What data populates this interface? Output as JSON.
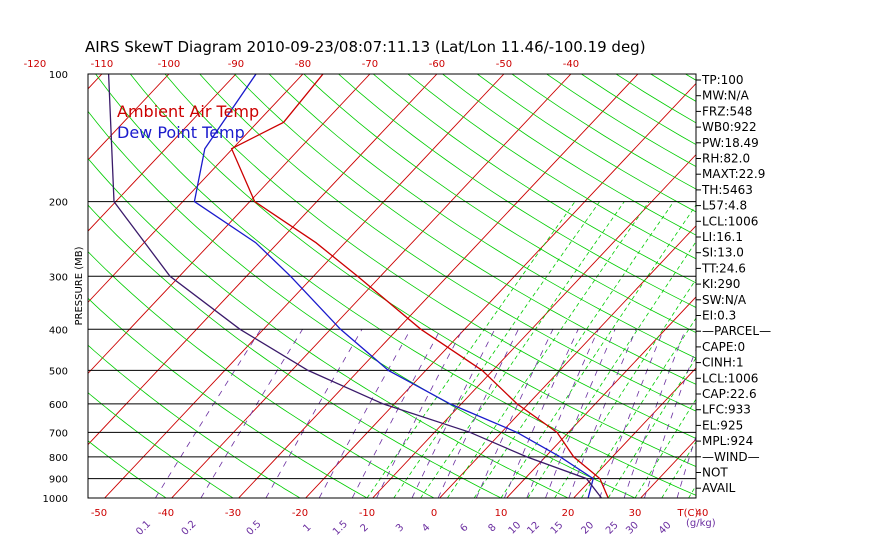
{
  "title": "AIRS SkewT Diagram 2010-09-23/08:07:11.13 (Lat/Lon 11.46/-100.19 deg)",
  "legend": {
    "ambient": "Ambient Air Temp",
    "dewpoint": "Dew Point Temp"
  },
  "colors": {
    "ambient": "#cc0000",
    "dewpoint": "#1a1acc",
    "isotherm": "#cc0000",
    "dry_adiabat": "#00cc00",
    "moist_adiabat": "#00cc00",
    "mixing_ratio": "#6b2ea0",
    "parcel": "#3a1a6a"
  },
  "chart_data": {
    "type": "line",
    "title": "AIRS SkewT Diagram 2010-09-23/08:07:11.13 (Lat/Lon 11.46/-100.19 deg)",
    "ylabel": "PRESSURE (MB)",
    "xlabel": "T(C)",
    "y_scale": "log",
    "y_ticks": [
      "100",
      "200",
      "300",
      "400",
      "500",
      "600",
      "700",
      "800",
      "900",
      "1000"
    ],
    "pressure_levels": [
      100,
      200,
      300,
      400,
      500,
      600,
      700,
      800,
      900,
      1000
    ],
    "bottom_temp_ticks": [
      "-50",
      "-40",
      "-30",
      "-20",
      "-10",
      "0",
      "10",
      "20",
      "30",
      "40"
    ],
    "top_temp_ticks": [
      "-120",
      "-110",
      "-100",
      "-90",
      "-80",
      "-70",
      "-60",
      "-50",
      "-40"
    ],
    "mixing_ratio_ticks": [
      "0.1",
      "0.2",
      "0.5",
      "1",
      "1.5",
      "2",
      "3",
      "4",
      "6",
      "8",
      "10",
      "12",
      "15",
      "20",
      "25",
      "30",
      "40"
    ],
    "mixing_ratio_unit": "(g/kg)",
    "series": [
      {
        "name": "Ambient Air Temp",
        "points": [
          {
            "p": 100,
            "t": -77
          },
          {
            "p": 130,
            "t": -76
          },
          {
            "p": 150,
            "t": -80
          },
          {
            "p": 200,
            "t": -69
          },
          {
            "p": 250,
            "t": -54
          },
          {
            "p": 300,
            "t": -43
          },
          {
            "p": 400,
            "t": -26
          },
          {
            "p": 500,
            "t": -11
          },
          {
            "p": 600,
            "t": -1
          },
          {
            "p": 700,
            "t": 9
          },
          {
            "p": 800,
            "t": 15
          },
          {
            "p": 900,
            "t": 22
          },
          {
            "p": 1000,
            "t": 26
          }
        ]
      },
      {
        "name": "Dew Point Temp",
        "points": [
          {
            "p": 100,
            "t": -87
          },
          {
            "p": 150,
            "t": -84
          },
          {
            "p": 200,
            "t": -78
          },
          {
            "p": 250,
            "t": -63
          },
          {
            "p": 300,
            "t": -53
          },
          {
            "p": 400,
            "t": -38
          },
          {
            "p": 500,
            "t": -25
          },
          {
            "p": 600,
            "t": -11
          },
          {
            "p": 700,
            "t": 3
          },
          {
            "p": 800,
            "t": 13
          },
          {
            "p": 900,
            "t": 21
          },
          {
            "p": 1000,
            "t": 23
          }
        ]
      },
      {
        "points": [
          {
            "p": 100,
            "t": -109
          },
          {
            "p": 200,
            "t": -90
          },
          {
            "p": 300,
            "t": -71
          },
          {
            "p": 400,
            "t": -53
          },
          {
            "p": 500,
            "t": -37
          },
          {
            "p": 600,
            "t": -21
          },
          {
            "p": 700,
            "t": -4
          },
          {
            "p": 800,
            "t": 8
          },
          {
            "p": 900,
            "t": 20
          },
          {
            "p": 1000,
            "t": 25
          }
        ]
      }
    ]
  },
  "indices": [
    "TP:100",
    "MW:N/A",
    "FRZ:548",
    "WB0:922",
    "PW:18.49",
    "RH:82.0",
    "MAXT:22.9",
    "TH:5463",
    "L57:4.8",
    "LCL:1006",
    "LI:16.1",
    "SI:13.0",
    "TT:24.6",
    "KI:290",
    "SW:N/A",
    "EI:0.3",
    "—PARCEL—",
    "CAPE:0",
    "CINH:1",
    "LCL:1006",
    "CAP:22.6",
    "LFC:933",
    "EL:925",
    "MPL:924",
    "—WIND—",
    "NOT",
    "AVAIL"
  ]
}
